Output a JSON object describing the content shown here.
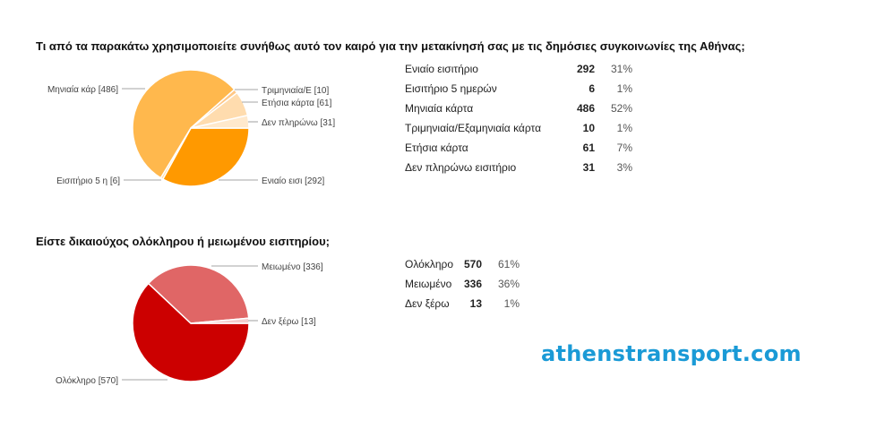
{
  "chart_data": [
    {
      "type": "pie",
      "title": "Τι από τα παρακάτω χρησιμοποιείτε συνήθως αυτό τον καιρό για την μετακίνησή σας με τις δημόσιες συγκοινωνίες της Αθήνας;",
      "categories": [
        "Ενιαίο εισιτήριο",
        "Εισιτήριο 5 ημερών",
        "Μηνιαία κάρτα",
        "Τριμηνιαία/Εξαμηνιαία κάρτα",
        "Ετήσια κάρτα",
        "Δεν πληρώνω εισιτήριο"
      ],
      "values": [
        292,
        6,
        486,
        10,
        61,
        31
      ],
      "percents": [
        "31%",
        "1%",
        "52%",
        "1%",
        "7%",
        "3%"
      ],
      "colors": [
        "#ff9900",
        "#ffd9a0",
        "#ffb84d",
        "#ffc785",
        "#ffdcae",
        "#ffe9cc"
      ],
      "slice_labels": [
        "Ενιαίο εισι [292]",
        "Εισιτήριο 5 η [6]",
        "Μηνιαία κάρ [486]",
        "Τριμηνιαία/Ε [10]",
        "Ετήσια κάρτα [61]",
        "Δεν πληρώνω  [31]"
      ]
    },
    {
      "type": "pie",
      "title": "Είστε δικαιούχος ολόκληρου ή μειωμένου εισιτηρίου;",
      "categories": [
        "Ολόκληρο",
        "Μειωμένο",
        "Δεν ξέρω"
      ],
      "values": [
        570,
        336,
        13
      ],
      "percents": [
        "61%",
        "36%",
        "1%"
      ],
      "colors": [
        "#cc0000",
        "#e06666",
        "#f4cccc"
      ],
      "slice_labels": [
        "Ολόκληρο [570]",
        "Μειωμένο [336]",
        "Δεν ξέρω [13]"
      ]
    }
  ],
  "watermark": "athenstransport.com"
}
